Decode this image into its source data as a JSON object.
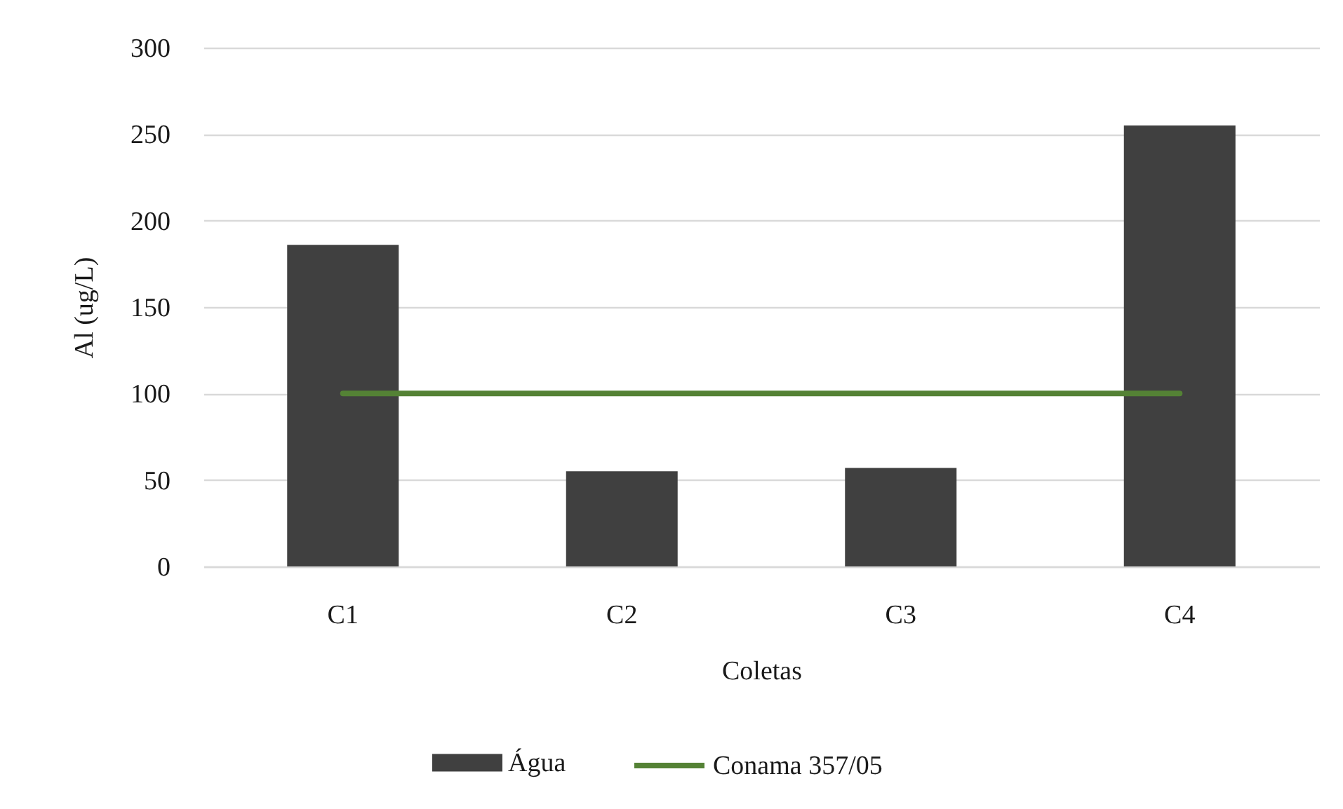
{
  "chart_data": {
    "type": "bar",
    "xlabel": "Coletas",
    "ylabel": "Al (ug/L)",
    "categories": [
      "C1",
      "C2",
      "C3",
      "C4"
    ],
    "series": [
      {
        "name": "Água",
        "color": "#404040",
        "values": [
          186,
          55,
          57,
          255
        ]
      },
      {
        "name": "Conama 357/05",
        "type": "line",
        "color": "#548235",
        "values": [
          100,
          100,
          100,
          100
        ]
      }
    ],
    "ylim": [
      0,
      300
    ],
    "yticks": [
      0,
      50,
      100,
      150,
      200,
      250,
      300
    ],
    "grid": "y",
    "legend": "bottom"
  }
}
